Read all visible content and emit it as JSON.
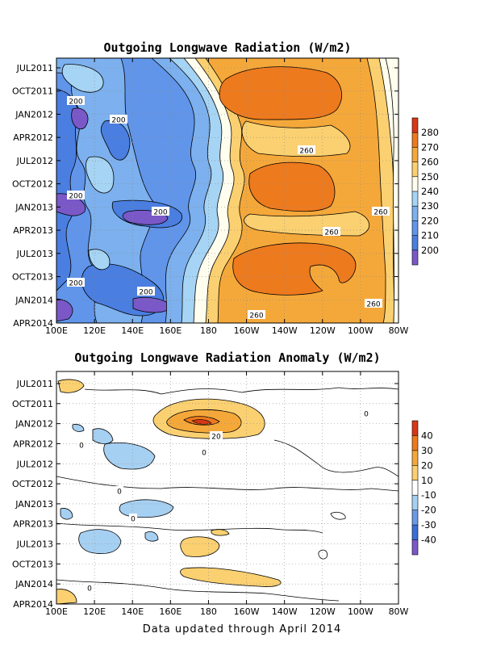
{
  "footer": "Data updated through April 2014",
  "chart_data": [
    {
      "type": "contour",
      "title": "Outgoing Longwave Radiation (W/m2)",
      "x_ticks": [
        "100E",
        "120E",
        "140E",
        "160E",
        "180",
        "160W",
        "140W",
        "120W",
        "100W",
        "80W"
      ],
      "y_ticks": [
        "JUL2011",
        "OCT2011",
        "JAN2012",
        "APR2012",
        "JUL2012",
        "OCT2012",
        "JAN2013",
        "APR2013",
        "JUL2013",
        "OCT2013",
        "JAN2014",
        "APR2014"
      ],
      "colorbar": {
        "levels": [
          200,
          210,
          220,
          230,
          240,
          250,
          260,
          270,
          280
        ],
        "colors": [
          "#7a58c8",
          "#4a7ee0",
          "#6095ea",
          "#7cb0ee",
          "#a6d4f4",
          "#fffeee",
          "#fbd070",
          "#f5a83a",
          "#ee7a1e",
          "#d83616"
        ]
      },
      "contour_labels": [
        {
          "text": "200",
          "x": "~110E",
          "y": "OCT2011"
        },
        {
          "text": "200",
          "x": "~130E",
          "y": "JAN2012"
        },
        {
          "text": "260",
          "x": "~132W",
          "y": "APR2012"
        },
        {
          "text": "200",
          "x": "~110E",
          "y": "OCT2012"
        },
        {
          "text": "200",
          "x": "~150E",
          "y": "JAN2013"
        },
        {
          "text": "260",
          "x": "~90W",
          "y": "JAN2013"
        },
        {
          "text": "260",
          "x": "~126W",
          "y": "APR2013"
        },
        {
          "text": "200",
          "x": "~110E",
          "y": "OCT2013"
        },
        {
          "text": "200",
          "x": "~147E",
          "y": "OCT2013"
        },
        {
          "text": "260",
          "x": "~98W",
          "y": "JAN2014"
        },
        {
          "text": "260",
          "x": "~157W",
          "y": "APR2014"
        }
      ]
    },
    {
      "type": "contour",
      "title": "Outgoing Longwave Radiation Anomaly (W/m2)",
      "x_ticks": [
        "100E",
        "120E",
        "140E",
        "160E",
        "180",
        "160W",
        "140W",
        "120W",
        "100W",
        "80W"
      ],
      "y_ticks": [
        "JUL2011",
        "OCT2011",
        "JAN2012",
        "APR2012",
        "JUL2012",
        "OCT2012",
        "JAN2013",
        "APR2013",
        "JUL2013",
        "OCT2013",
        "JAN2014",
        "APR2014"
      ],
      "colorbar": {
        "levels": [
          -40,
          -30,
          -20,
          -10,
          10,
          20,
          30,
          40
        ],
        "colors": [
          "#7a58c8",
          "#3a6ed8",
          "#6a9ae6",
          "#a6d0f2",
          "#ffffff",
          "#fbd070",
          "#f5a83a",
          "#ee7a1e",
          "#d83616"
        ]
      },
      "contour_labels": [
        {
          "text": "20",
          "x": "~178E",
          "y": "JAN2012"
        },
        {
          "text": "0",
          "x": "~118W",
          "y": "NOV2011"
        },
        {
          "text": "0",
          "x": "~112E",
          "y": "MAY2012"
        },
        {
          "text": "0",
          "x": "~164E",
          "y": "JUN2012"
        },
        {
          "text": "0",
          "x": "~130E",
          "y": "OCT2012"
        },
        {
          "text": "0",
          "x": "~148E",
          "y": "APR2013"
        },
        {
          "text": "0",
          "x": "~110E",
          "y": "JAN2014"
        }
      ]
    }
  ]
}
